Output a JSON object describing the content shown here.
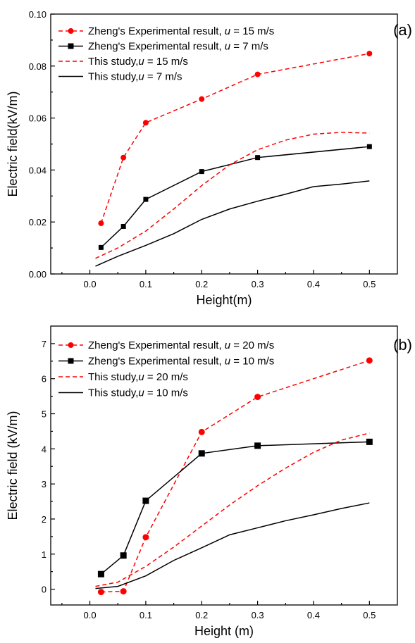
{
  "chart_data": [
    {
      "type": "line",
      "panel_label": "(a)",
      "xlabel": "Height(m)",
      "ylabel": "Electric field(kV/m)",
      "xlim": [
        -0.07,
        0.55
      ],
      "ylim": [
        0,
        0.1
      ],
      "x_ticks": [
        0.0,
        0.1,
        0.2,
        0.3,
        0.4,
        0.5
      ],
      "x_tick_labels": [
        "0.0",
        "0.1",
        "0.2",
        "0.3",
        "0.4",
        "0.5"
      ],
      "y_ticks": [
        0,
        0.02,
        0.04,
        0.06,
        0.08,
        0.1
      ],
      "y_tick_labels": [
        "0.00",
        "0.02",
        "0.04",
        "0.06",
        "0.08",
        "0.10"
      ],
      "legend_position": "top-left",
      "series": [
        {
          "name_prefix": "Zheng's Experimental result, ",
          "u_symbol": "u",
          "name_suffix": " = 15 m/s",
          "color": "#ff0000",
          "line": "dashed",
          "marker": "circle",
          "x": [
            0.02,
            0.06,
            0.1,
            0.2,
            0.3,
            0.5
          ],
          "y": [
            0.0195,
            0.0448,
            0.0582,
            0.0673,
            0.0768,
            0.0848
          ]
        },
        {
          "name_prefix": "Zheng's Experimental result, ",
          "u_symbol": "u",
          "name_suffix": " = 7 m/s",
          "color": "#000000",
          "line": "solid",
          "marker": "square",
          "x": [
            0.02,
            0.06,
            0.1,
            0.2,
            0.3,
            0.5
          ],
          "y": [
            0.0102,
            0.0183,
            0.0287,
            0.0394,
            0.0448,
            0.049
          ]
        },
        {
          "name_prefix": "This study,",
          "u_symbol": "u",
          "name_suffix": " = 15 m/s",
          "color": "#ff0000",
          "line": "dashed",
          "marker": "none",
          "x": [
            0.01,
            0.05,
            0.1,
            0.15,
            0.2,
            0.25,
            0.3,
            0.35,
            0.4,
            0.45,
            0.5
          ],
          "y": [
            0.006,
            0.01,
            0.0165,
            0.025,
            0.034,
            0.042,
            0.0478,
            0.0515,
            0.0538,
            0.0545,
            0.0542
          ]
        },
        {
          "name_prefix": "This study,",
          "u_symbol": "u",
          "name_suffix": " = 7 m/s",
          "color": "#000000",
          "line": "solid",
          "marker": "none",
          "x": [
            0.01,
            0.05,
            0.1,
            0.15,
            0.2,
            0.25,
            0.3,
            0.35,
            0.4,
            0.45,
            0.5
          ],
          "y": [
            0.003,
            0.0068,
            0.011,
            0.0155,
            0.021,
            0.025,
            0.028,
            0.0307,
            0.0336,
            0.0346,
            0.0358
          ]
        }
      ]
    },
    {
      "type": "line",
      "panel_label": "(b)",
      "xlabel": "Height (m)",
      "ylabel": "Electric field (kV/m)",
      "xlim": [
        -0.07,
        0.55
      ],
      "ylim": [
        -0.45,
        7.5
      ],
      "x_ticks": [
        0.0,
        0.1,
        0.2,
        0.3,
        0.4,
        0.5
      ],
      "x_tick_labels": [
        "0.0",
        "0.1",
        "0.2",
        "0.3",
        "0.4",
        "0.5"
      ],
      "y_ticks": [
        0,
        1,
        2,
        3,
        4,
        5,
        6,
        7
      ],
      "y_tick_labels": [
        "0",
        "1",
        "2",
        "3",
        "4",
        "5",
        "6",
        "7"
      ],
      "legend_position": "top-left",
      "series": [
        {
          "name_prefix": "Zheng's Experimental result, ",
          "u_symbol": "u",
          "name_suffix": " = 20 m/s",
          "color": "#ff0000",
          "line": "dashed",
          "marker": "circle",
          "x": [
            0.02,
            0.06,
            0.1,
            0.2,
            0.3,
            0.5
          ],
          "y": [
            -0.08,
            -0.06,
            1.48,
            4.48,
            5.48,
            6.52
          ]
        },
        {
          "name_prefix": "Zheng's Experimental result, ",
          "u_symbol": "u",
          "name_suffix": " = 10 m/s",
          "color": "#000000",
          "line": "solid",
          "marker": "square",
          "x": [
            0.02,
            0.06,
            0.1,
            0.2,
            0.3,
            0.5
          ],
          "y": [
            0.43,
            0.96,
            2.52,
            3.87,
            4.09,
            4.2
          ]
        },
        {
          "name_prefix": "This study,",
          "u_symbol": "u",
          "name_suffix": " = 20 m/s",
          "color": "#ff0000",
          "line": "dashed",
          "marker": "none",
          "x": [
            0.01,
            0.05,
            0.1,
            0.15,
            0.2,
            0.25,
            0.3,
            0.35,
            0.4,
            0.45,
            0.5
          ],
          "y": [
            0.08,
            0.2,
            0.65,
            1.2,
            1.8,
            2.4,
            2.95,
            3.45,
            3.9,
            4.25,
            4.45
          ]
        },
        {
          "name_prefix": "This study,",
          "u_symbol": "u",
          "name_suffix": " = 10 m/s",
          "color": "#000000",
          "line": "solid",
          "marker": "none",
          "x": [
            0.01,
            0.05,
            0.1,
            0.15,
            0.2,
            0.25,
            0.3,
            0.35,
            0.4,
            0.45,
            0.5
          ],
          "y": [
            0.02,
            0.08,
            0.38,
            0.82,
            1.18,
            1.55,
            1.75,
            1.95,
            2.12,
            2.3,
            2.46
          ]
        }
      ]
    }
  ]
}
